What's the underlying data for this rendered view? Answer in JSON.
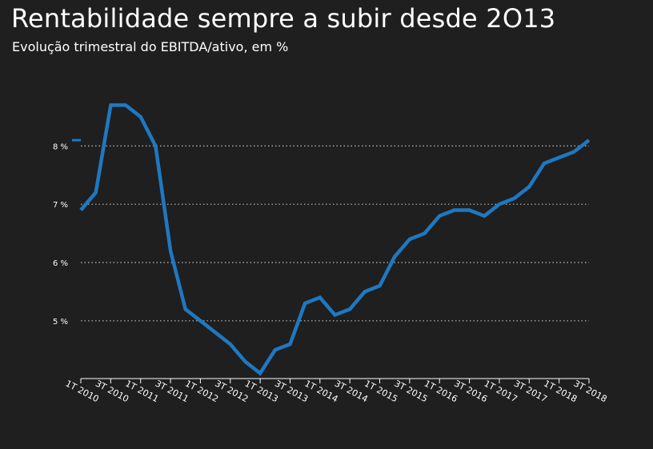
{
  "title": "Rentabilidade sempre a subir desde 2O13",
  "subtitle": "Evolução trimestral do EBITDA/ativo, em %",
  "colors": {
    "background": "#1f1f1f",
    "line": "#1f78c1",
    "grid": "#bfbfbf",
    "text": "#ffffff"
  },
  "chart_data": {
    "type": "line",
    "title": "Rentabilidade sempre a subir desde 2O13",
    "subtitle": "Evolução trimestral do EBITDA/ativo, em %",
    "xlabel": "",
    "ylabel": "",
    "ylim": [
      4.05,
      9.2
    ],
    "y_ticks": [
      5,
      6,
      7,
      8
    ],
    "y_tick_labels": [
      "5 %",
      "6 %",
      "7 %",
      "8 %"
    ],
    "grid": "horizontal dotted",
    "legend": "none",
    "x": [
      "1T 2010",
      "2T 2010",
      "3T 2010",
      "4T 2010",
      "1T 2011",
      "2T 2011",
      "3T 2011",
      "4T 2011",
      "1T 2012",
      "2T 2012",
      "3T 2012",
      "4T 2012",
      "1T 2013",
      "2T 2013",
      "3T 2013",
      "4T 2013",
      "1T 2014",
      "2T 2014",
      "3T 2014",
      "4T 2014",
      "1T 2015",
      "2T 2015",
      "3T 2015",
      "4T 2015",
      "1T 2016",
      "2T 2016",
      "3T 2016",
      "4T 2016",
      "1T 2017",
      "2T 2017",
      "3T 2017",
      "4T 2017",
      "1T 2018",
      "2T 2018",
      "3T 2018"
    ],
    "x_tick_labels": [
      "1T 2010",
      "3T 2010",
      "1T 2011",
      "3T 2011",
      "1T 2012",
      "3T 2012",
      "1T 2013",
      "3T 2013",
      "1T 2014",
      "3T 2014",
      "1T 2015",
      "3T 2015",
      "1T 2016",
      "3T 2016",
      "1T 2017",
      "3T 2017",
      "1T 2018",
      "3T 2018"
    ],
    "series": [
      {
        "values": [
          6.9,
          7.2,
          8.7,
          8.7,
          8.5,
          8.0,
          6.2,
          5.2,
          5.0,
          4.8,
          4.6,
          4.3,
          4.1,
          4.5,
          4.6,
          5.3,
          5.4,
          5.1,
          5.2,
          5.5,
          5.6,
          6.1,
          6.4,
          6.5,
          6.8,
          6.9,
          6.9,
          6.8,
          7.0,
          7.1,
          7.3,
          7.7,
          7.8,
          7.9,
          8.1
        ]
      }
    ]
  }
}
